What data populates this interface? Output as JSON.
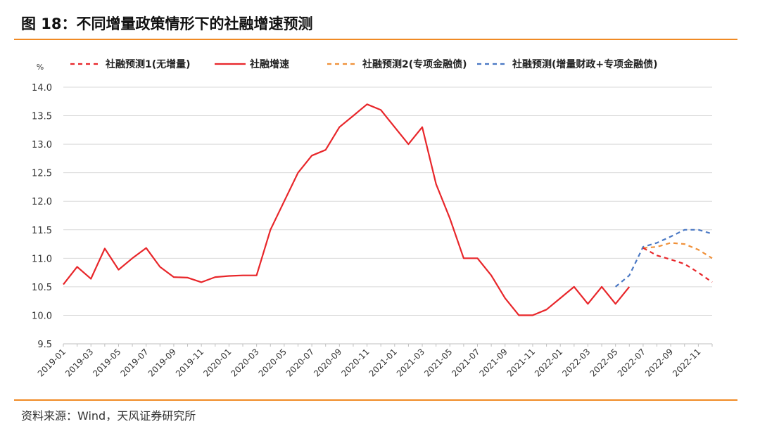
{
  "header": {
    "title": "图 18：不同增量政策情形下的社融增速预测"
  },
  "footer": {
    "source": "资料来源：Wind，天风证券研究所"
  },
  "chart_data": {
    "type": "line",
    "title": "",
    "ylabel": "%",
    "ylim": [
      9.5,
      14.0
    ],
    "yticks": [
      "9.5",
      "10.0",
      "10.5",
      "11.0",
      "11.5",
      "12.0",
      "12.5",
      "13.0",
      "13.5",
      "14.0"
    ],
    "grid": true,
    "legend_position": "top",
    "xticks": [
      "2019-01",
      "2019-03",
      "2019-05",
      "2019-07",
      "2019-09",
      "2019-11",
      "2020-01",
      "2020-03",
      "2020-05",
      "2020-07",
      "2020-09",
      "2020-11",
      "2021-01",
      "2021-03",
      "2021-05",
      "2021-07",
      "2021-09",
      "2021-11",
      "2022-01",
      "2022-03",
      "2022-05",
      "2022-07",
      "2022-09",
      "2022-11"
    ],
    "months": [
      "2019-01",
      "2019-02",
      "2019-03",
      "2019-04",
      "2019-05",
      "2019-06",
      "2019-07",
      "2019-08",
      "2019-09",
      "2019-10",
      "2019-11",
      "2019-12",
      "2020-01",
      "2020-02",
      "2020-03",
      "2020-04",
      "2020-05",
      "2020-06",
      "2020-07",
      "2020-08",
      "2020-09",
      "2020-10",
      "2020-11",
      "2020-12",
      "2021-01",
      "2021-02",
      "2021-03",
      "2021-04",
      "2021-05",
      "2021-06",
      "2021-07",
      "2021-08",
      "2021-09",
      "2021-10",
      "2021-11",
      "2021-12",
      "2022-01",
      "2022-02",
      "2022-03",
      "2022-04",
      "2022-05",
      "2022-06",
      "2022-07",
      "2022-08",
      "2022-09",
      "2022-10",
      "2022-11",
      "2022-12"
    ],
    "series": [
      {
        "name": "社融预测1(无增量)",
        "color": "#e8262a",
        "dash": true,
        "start": "2022-07",
        "values": [
          11.18,
          11.05,
          10.98,
          10.9,
          10.75,
          10.58
        ]
      },
      {
        "name": "社融增速",
        "color": "#e8262a",
        "dash": false,
        "start": "2019-01",
        "values": [
          10.54,
          10.85,
          10.64,
          11.17,
          10.8,
          11.0,
          11.18,
          10.85,
          10.67,
          10.66,
          10.58,
          10.67,
          10.69,
          10.7,
          10.7,
          11.5,
          12.0,
          12.5,
          12.8,
          12.9,
          13.3,
          13.5,
          13.7,
          13.6,
          13.3,
          13.0,
          13.3,
          12.3,
          11.7,
          11.0,
          11.0,
          10.7,
          10.3,
          10.0,
          10.0,
          10.1,
          10.3,
          10.5,
          10.2,
          10.5,
          10.2,
          10.5
        ]
      },
      {
        "name": "社融预测2(专项金融债)",
        "color": "#f0913a",
        "dash": true,
        "start": "2022-07",
        "values": [
          11.18,
          11.2,
          11.27,
          11.25,
          11.15,
          11.0
        ]
      },
      {
        "name": "社融预测(增量财政+专项金融债)",
        "color": "#4a78c4",
        "dash": true,
        "start": "2022-05",
        "values": [
          10.5,
          10.7,
          11.2,
          11.27,
          11.38,
          11.5,
          11.5,
          11.43
        ]
      }
    ]
  }
}
